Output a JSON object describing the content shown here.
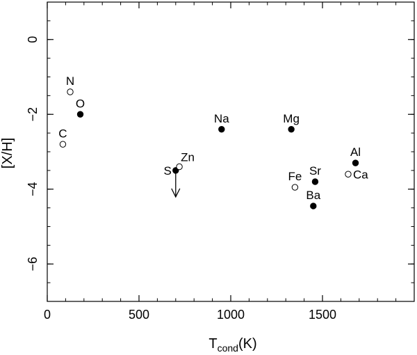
{
  "chart_data": {
    "type": "scatter",
    "title": "",
    "xlabel": {
      "main": "T",
      "sub": "cond",
      "unit": "(K)"
    },
    "ylabel": "[X/H]",
    "xlim": [
      0,
      2000
    ],
    "ylim": [
      -7,
      1
    ],
    "x_ticks": [
      0,
      500,
      1000,
      1500
    ],
    "x_tick_labels": [
      "0",
      "500",
      "1000",
      "1500"
    ],
    "y_ticks": [
      0,
      -2,
      -4,
      -6
    ],
    "y_tick_labels": [
      "0",
      "−2",
      "−4",
      "−6"
    ],
    "x_minor_step": 100,
    "y_minor_step": 0.5,
    "grid": false,
    "series": [
      {
        "marker": "filled-circle",
        "points": [
          {
            "label": "O",
            "x": 180,
            "y": -2.0,
            "label_pos": "above"
          },
          {
            "label": "Na",
            "x": 950,
            "y": -2.4,
            "label_pos": "above"
          },
          {
            "label": "Mg",
            "x": 1330,
            "y": -2.4,
            "label_pos": "above"
          },
          {
            "label": "S",
            "x": 700,
            "y": -3.5,
            "label_pos": "left",
            "upper_limit": true
          },
          {
            "label": "Sr",
            "x": 1460,
            "y": -3.8,
            "label_pos": "above"
          },
          {
            "label": "Ba",
            "x": 1450,
            "y": -4.45,
            "label_pos": "above"
          },
          {
            "label": "Al",
            "x": 1680,
            "y": -3.3,
            "label_pos": "above"
          }
        ]
      },
      {
        "marker": "open-circle",
        "points": [
          {
            "label": "N",
            "x": 125,
            "y": -1.4,
            "label_pos": "above"
          },
          {
            "label": "C",
            "x": 85,
            "y": -2.8,
            "label_pos": "above"
          },
          {
            "label": "Zn",
            "x": 720,
            "y": -3.4,
            "label_pos": "above-right"
          },
          {
            "label": "Fe",
            "x": 1350,
            "y": -3.95,
            "label_pos": "above"
          },
          {
            "label": "Ca",
            "x": 1640,
            "y": -3.6,
            "label_pos": "right"
          }
        ]
      }
    ]
  }
}
